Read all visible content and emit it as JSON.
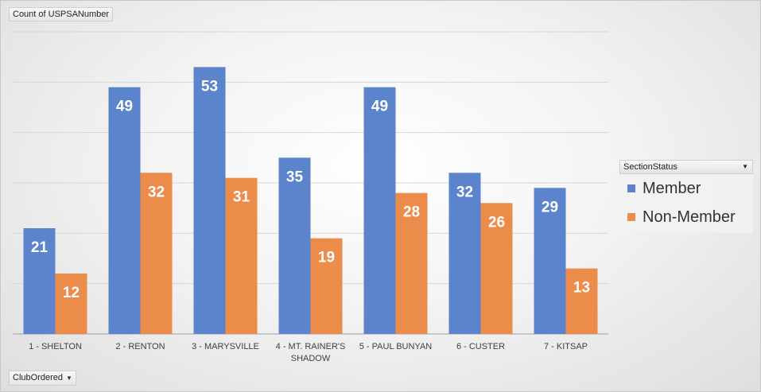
{
  "value_field_label": "Count of USPSANumber",
  "axis_field_label": "ClubOrdered",
  "legend_field_label": "SectionStatus",
  "dropdown_icon": "triangle-down-icon",
  "colors": {
    "Member": "#5b84cc",
    "Non-Member": "#ec8c4a"
  },
  "chart_data": {
    "type": "bar",
    "categories": [
      "1 - SHELTON",
      "2 - RENTON",
      "3 - MARYSVILLE",
      "4 - MT. RAINER'S SHADOW",
      "5 - PAUL BUNYAN",
      "6 - CUSTER",
      "7 - KITSAP"
    ],
    "series": [
      {
        "name": "Member",
        "values": [
          21,
          49,
          53,
          35,
          49,
          32,
          29
        ]
      },
      {
        "name": "Non-Member",
        "values": [
          12,
          32,
          31,
          19,
          28,
          26,
          13
        ]
      }
    ],
    "ylim": [
      0,
      60
    ],
    "grid": true,
    "legend_position": "right",
    "data_labels": true
  }
}
